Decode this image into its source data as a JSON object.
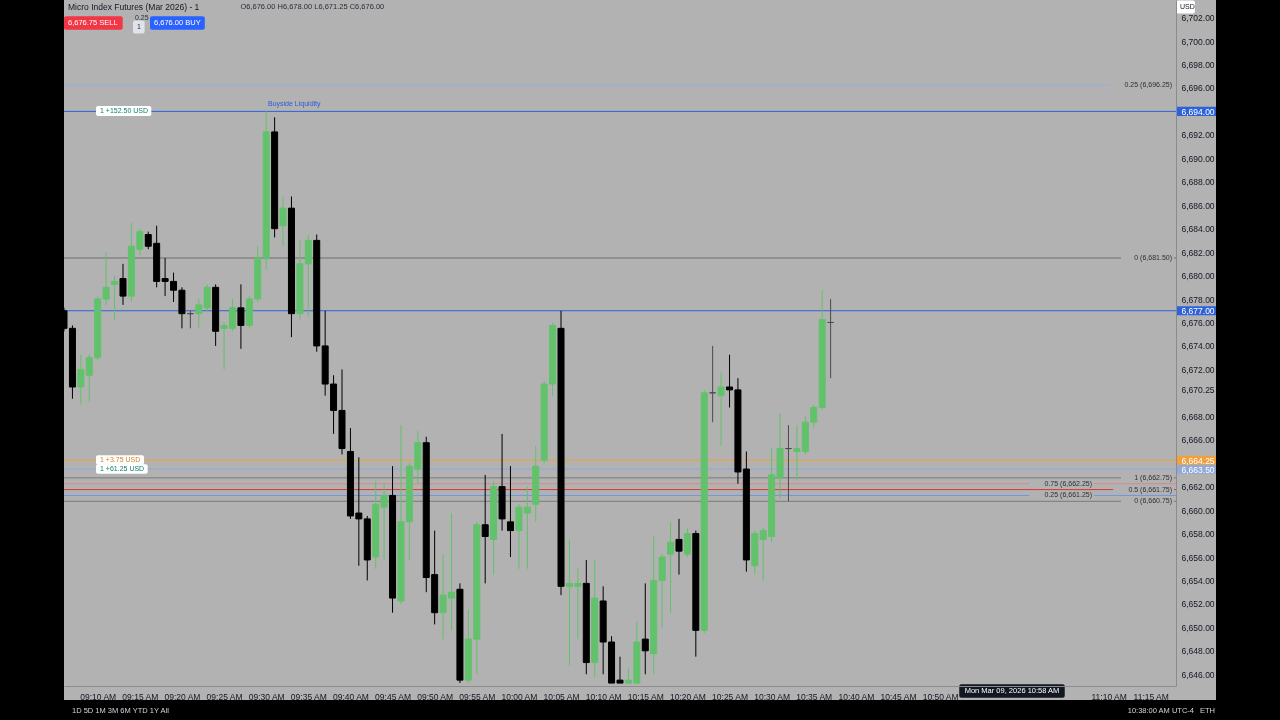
{
  "chart_data": {
    "type": "candlestick",
    "title": "Micro Index Futures (Mar 2026) - 1",
    "subtitle": "O6,676.00 H6,678.00 L6,671.25 C6,676.00",
    "x": [
      9.1,
      9.1167,
      9.1333,
      9.15,
      9.1667,
      9.1833,
      9.2,
      9.2167,
      9.2333,
      9.25,
      9.2667,
      9.2833,
      9.3,
      9.3167,
      9.3333,
      9.35,
      9.3667,
      9.3833,
      9.4,
      9.4167,
      9.4333,
      9.45,
      9.4667,
      9.4833,
      9.5,
      9.5167,
      9.5333,
      9.55,
      9.5667,
      9.5833,
      9.6,
      9.6167,
      9.6333,
      9.65,
      9.6667,
      9.6833,
      9.7,
      9.7167,
      9.7333,
      9.75,
      9.7667,
      9.7833,
      9.8,
      9.8167,
      9.8333,
      9.85,
      9.8667,
      9.8833,
      9.9,
      9.9167,
      9.9333,
      9.95,
      9.9667,
      9.9833,
      10,
      10.0167,
      10.0333,
      10.05,
      10.0667,
      10.0833,
      10.1,
      10.1167,
      10.1333,
      10.15,
      10.1667,
      10.1833,
      10.2,
      10.2167,
      10.2333,
      10.25,
      10.2667,
      10.2833,
      10.3,
      10.3167,
      10.3333,
      10.35,
      10.3667,
      10.3833,
      10.4,
      10.4167,
      10.4333,
      10.45,
      10.4667,
      10.4833,
      10.5,
      10.5167,
      10.5333,
      10.55,
      10.5667,
      10.5833,
      10.6,
      10.6167
    ],
    "ohlc": [
      [
        6677,
        6677.25,
        6675.25,
        6675.5
      ],
      [
        6675.5,
        6675.75,
        6669.5,
        6670.5
      ],
      [
        6670.5,
        6673.25,
        6669,
        6672
      ],
      [
        6671.5,
        6673.25,
        6669.25,
        6673
      ],
      [
        6673,
        6678.25,
        6672.75,
        6678
      ],
      [
        6678,
        6682,
        6677.5,
        6679
      ],
      [
        6679.25,
        6680,
        6676.25,
        6679.5
      ],
      [
        6679.75,
        6681,
        6677.5,
        6678.25
      ],
      [
        6678.25,
        6684.5,
        6677.75,
        6682.5
      ],
      [
        6682.25,
        6684,
        6681.75,
        6683.75
      ],
      [
        6683.5,
        6683.75,
        6682.25,
        6682.5
      ],
      [
        6682.75,
        6684.25,
        6679,
        6679.5
      ],
      [
        6679.75,
        6681.5,
        6678.25,
        6679.5
      ],
      [
        6679.5,
        6680.25,
        6677.75,
        6678.75
      ],
      [
        6678.75,
        6679,
        6675.5,
        6676.75
      ],
      [
        6676.75,
        6677,
        6675.5,
        6676.75
      ],
      [
        6676.75,
        6678,
        6675.5,
        6677.5
      ],
      [
        6677.25,
        6679.25,
        6677,
        6679
      ],
      [
        6679,
        6679.25,
        6674,
        6675.25
      ],
      [
        6675.5,
        6676,
        6672,
        6675.75
      ],
      [
        6675.5,
        6678,
        6675.25,
        6677.25
      ],
      [
        6677.25,
        6679.25,
        6673.75,
        6675.75
      ],
      [
        6675.75,
        6678.25,
        6675.5,
        6678
      ],
      [
        6678,
        6682.5,
        6677.75,
        6681.5
      ],
      [
        6681.5,
        6694,
        6680.5,
        6692.25
      ],
      [
        6692.25,
        6693.5,
        6683.25,
        6684
      ],
      [
        6684.25,
        6686.75,
        6682.5,
        6685.75
      ],
      [
        6685.75,
        6686.75,
        6674.75,
        6676.75
      ],
      [
        6676.75,
        6683,
        6676.25,
        6681
      ],
      [
        6681,
        6683.5,
        6676.5,
        6683
      ],
      [
        6683,
        6683.5,
        6673.5,
        6674
      ],
      [
        6674,
        6677,
        6669.75,
        6670.75
      ],
      [
        6670.75,
        6671.5,
        6666.5,
        6668.5
      ],
      [
        6668.5,
        6672,
        6664.75,
        6665.25
      ],
      [
        6665,
        6667,
        6659.25,
        6659.5
      ],
      [
        6659.75,
        6664.5,
        6655.25,
        6659.25
      ],
      [
        6659.25,
        6659.5,
        6654,
        6655.75
      ],
      [
        6656,
        6662.5,
        6655,
        6660.5
      ],
      [
        6660.25,
        6662.25,
        6655.75,
        6661.25
      ],
      [
        6661.25,
        6663.75,
        6651.25,
        6652.5
      ],
      [
        6652.25,
        6667.25,
        6652,
        6659
      ],
      [
        6659,
        6664,
        6655.75,
        6663.75
      ],
      [
        6663.5,
        6666.75,
        6662.25,
        6665.75
      ],
      [
        6665.75,
        6666.25,
        6653,
        6654.25
      ],
      [
        6654.5,
        6658.25,
        6650.25,
        6651.25
      ],
      [
        6651.25,
        6656.25,
        6649,
        6652.75
      ],
      [
        6652.5,
        6659.75,
        6649.75,
        6653
      ],
      [
        6653.25,
        6653.75,
        6645.25,
        6645.5
      ],
      [
        6645.5,
        6651.5,
        6645.25,
        6649
      ],
      [
        6649,
        6659,
        6646,
        6658.75
      ],
      [
        6658.75,
        6663,
        6653.75,
        6657.75
      ],
      [
        6657.5,
        6662.5,
        6654.5,
        6662
      ],
      [
        6662,
        6666.5,
        6658.25,
        6659.25
      ],
      [
        6659,
        6663.75,
        6656,
        6658.25
      ],
      [
        6658.25,
        6660.5,
        6655,
        6660.25
      ],
      [
        6659.75,
        6662,
        6655,
        6660.25
      ],
      [
        6660.5,
        6665.5,
        6659,
        6663.75
      ],
      [
        6664.25,
        6671,
        6664,
        6670.75
      ],
      [
        6670.75,
        6676,
        6669.75,
        6675.75
      ],
      [
        6675.5,
        6677,
        6652.75,
        6653.5
      ],
      [
        6653.5,
        6657.5,
        6646.75,
        6653.75
      ],
      [
        6653.5,
        6655,
        6649,
        6653.75
      ],
      [
        6653.75,
        6655.75,
        6646,
        6647
      ],
      [
        6647,
        6655.75,
        6645.75,
        6652.5
      ],
      [
        6652.25,
        6653.5,
        6646,
        6648.75
      ],
      [
        6648.75,
        6649.25,
        6645.25,
        6645.25
      ],
      [
        6645.5,
        6647.5,
        6645.25,
        6645.25
      ],
      [
        6645.25,
        6646.5,
        6645.25,
        6645.5
      ],
      [
        6645.25,
        6650.5,
        6645.25,
        6648.75
      ],
      [
        6649,
        6653.75,
        6646,
        6648
      ],
      [
        6647.75,
        6657.75,
        6646,
        6654
      ],
      [
        6654,
        6656.25,
        6650,
        6656
      ],
      [
        6656.25,
        6659,
        6651.25,
        6657.25
      ],
      [
        6657.5,
        6659.25,
        6654.5,
        6656.5
      ],
      [
        6656.25,
        6658.5,
        6656,
        6658
      ],
      [
        6658,
        6658.25,
        6647.5,
        6649.75
      ],
      [
        6649.75,
        6670.25,
        6649.5,
        6670
      ],
      [
        6670,
        6674,
        6667.5,
        6670
      ],
      [
        6669.75,
        6671.75,
        6665.5,
        6670.5
      ],
      [
        6670.5,
        6673.25,
        6668.75,
        6670.25
      ],
      [
        6670.25,
        6671.25,
        6662.25,
        6663.25
      ],
      [
        6663.5,
        6665,
        6654.75,
        6655.75
      ],
      [
        6655.25,
        6658.25,
        6654.5,
        6658
      ],
      [
        6657.5,
        6658.5,
        6654,
        6658.25
      ],
      [
        6657.75,
        6665.25,
        6657.25,
        6663
      ],
      [
        6662.75,
        6668.25,
        6661,
        6665.25
      ],
      [
        6665.25,
        6667.25,
        6660.75,
        6665.25
      ],
      [
        6665,
        6667.25,
        6662.5,
        6665.25
      ],
      [
        6665,
        6668,
        6664.75,
        6667.5
      ],
      [
        6667.5,
        6669,
        6667,
        6668.75
      ],
      [
        6668.75,
        6678.75,
        6668.5,
        6676.25
      ],
      [
        6676,
        6678,
        6671.25,
        6676
      ]
    ],
    "colors": [
      "#000000",
      "#000000",
      "#62c26b",
      "#62c26b",
      "#62c26b",
      "#62c26b",
      "#62c26b",
      "#000000",
      "#62c26b",
      "#62c26b",
      "#000000",
      "#000000",
      "#000000",
      "#000000",
      "#000000",
      "#4a4a4a",
      "#62c26b",
      "#62c26b",
      "#000000",
      "#62c26b",
      "#62c26b",
      "#000000",
      "#62c26b",
      "#62c26b",
      "#62c26b",
      "#000000",
      "#62c26b",
      "#000000",
      "#62c26b",
      "#62c26b",
      "#000000",
      "#000000",
      "#000000",
      "#000000",
      "#000000",
      "#000000",
      "#000000",
      "#62c26b",
      "#62c26b",
      "#000000",
      "#62c26b",
      "#62c26b",
      "#62c26b",
      "#000000",
      "#000000",
      "#62c26b",
      "#62c26b",
      "#000000",
      "#62c26b",
      "#62c26b",
      "#000000",
      "#62c26b",
      "#000000",
      "#000000",
      "#62c26b",
      "#62c26b",
      "#62c26b",
      "#62c26b",
      "#62c26b",
      "#000000",
      "#62c26b",
      "#62c26b",
      "#000000",
      "#62c26b",
      "#000000",
      "#000000",
      "#000000",
      "#62c26b",
      "#62c26b",
      "#000000",
      "#62c26b",
      "#62c26b",
      "#62c26b",
      "#000000",
      "#62c26b",
      "#000000",
      "#62c26b",
      "#4a4a4a",
      "#62c26b",
      "#000000",
      "#000000",
      "#000000",
      "#62c26b",
      "#62c26b",
      "#62c26b",
      "#62c26b",
      "#4a4a4a",
      "#62c26b",
      "#62c26b",
      "#62c26b",
      "#62c26b",
      "#4a4a4a"
    ],
    "xlim": [
      9.1,
      11.3
    ],
    "xticks": [
      {
        "value": 9.1667,
        "label": "09:10 AM"
      },
      {
        "value": 9.25,
        "label": "09:15 AM"
      },
      {
        "value": 9.3333,
        "label": "09:20 AM"
      },
      {
        "value": 9.4167,
        "label": "09:25 AM"
      },
      {
        "value": 9.5,
        "label": "09:30 AM"
      },
      {
        "value": 9.5833,
        "label": "09:35 AM"
      },
      {
        "value": 9.6667,
        "label": "09:40 AM"
      },
      {
        "value": 9.75,
        "label": "09:45 AM"
      },
      {
        "value": 9.8333,
        "label": "09:50 AM"
      },
      {
        "value": 9.9167,
        "label": "09:55 AM"
      },
      {
        "value": 10,
        "label": "10:00 AM"
      },
      {
        "value": 10.0833,
        "label": "10:05 AM"
      },
      {
        "value": 10.1667,
        "label": "10:10 AM"
      },
      {
        "value": 10.25,
        "label": "10:15 AM"
      },
      {
        "value": 10.3333,
        "label": "10:20 AM"
      },
      {
        "value": 10.4167,
        "label": "10:25 AM"
      },
      {
        "value": 10.5,
        "label": "10:30 AM"
      },
      {
        "value": 10.5833,
        "label": "10:35 AM"
      },
      {
        "value": 10.6667,
        "label": "10:40 AM"
      },
      {
        "value": 10.75,
        "label": "10:45 AM"
      },
      {
        "value": 10.8333,
        "label": "10:50 AM"
      },
      {
        "value": 11.1667,
        "label": "11:10 AM"
      },
      {
        "value": 11.25,
        "label": "11:15 AM"
      }
    ],
    "ylim": [
      6645,
      6703.5
    ],
    "yticks": [
      {
        "value": 6646,
        "label": "6,646.00"
      },
      {
        "value": 6648,
        "label": "6,648.00"
      },
      {
        "value": 6650,
        "label": "6,650.00"
      },
      {
        "value": 6652,
        "label": "6,652.00"
      },
      {
        "value": 6654,
        "label": "6,654.00"
      },
      {
        "value": 6656,
        "label": "6,656.00"
      },
      {
        "value": 6658,
        "label": "6,658.00"
      },
      {
        "value": 6660,
        "label": "6,660.00"
      },
      {
        "value": 6662,
        "label": "6,662.00"
      },
      {
        "value": 6663.5,
        "label": "6,663.50"
      },
      {
        "value": 6664.25,
        "label": "6,664.25"
      },
      {
        "value": 6666,
        "label": "6,666.00"
      },
      {
        "value": 6668,
        "label": "6,668.00"
      },
      {
        "value": 6670.25,
        "label": "6,670.25"
      },
      {
        "value": 6672,
        "label": "6,672.00"
      },
      {
        "value": 6674,
        "label": "6,674.00"
      },
      {
        "value": 6676,
        "label": "6,676.00"
      },
      {
        "value": 6677,
        "label": "6,677.00"
      },
      {
        "value": 6678,
        "label": "6,678.00"
      },
      {
        "value": 6680,
        "label": "6,680.00"
      },
      {
        "value": 6682,
        "label": "6,682.00"
      },
      {
        "value": 6684,
        "label": "6,684.00"
      },
      {
        "value": 6686,
        "label": "6,686.00"
      },
      {
        "value": 6688,
        "label": "6,688.00"
      },
      {
        "value": 6690,
        "label": "6,690.00"
      },
      {
        "value": 6692,
        "label": "6,692.00"
      },
      {
        "value": 6694,
        "label": "6,694.00"
      },
      {
        "value": 6696,
        "label": "6,696.00"
      },
      {
        "value": 6698,
        "label": "6,698.00"
      },
      {
        "value": 6700,
        "label": "6,700.00"
      },
      {
        "value": 6702,
        "label": "6,702.00"
      }
    ],
    "ref_lines": [
      {
        "axis": "y",
        "value": 6696.25,
        "label": "0.25 (6,696.25)",
        "color": "#93aee0"
      },
      {
        "axis": "y",
        "value": 6694,
        "color": "#2d62d8"
      },
      {
        "axis": "y",
        "value": 6681.5,
        "label": "0 (6,681.50)",
        "color": "#6f6f6f"
      },
      {
        "axis": "y",
        "value": 6677,
        "color": "#2d62d8"
      },
      {
        "axis": "y",
        "value": 6664.25,
        "color": "#f0a03c"
      },
      {
        "axis": "y",
        "value": 6663.5,
        "color": "#8fa9d8"
      },
      {
        "axis": "y",
        "value": 6662.75,
        "label": "1 (6,662.75)",
        "color": "#7a7a7a"
      },
      {
        "axis": "y",
        "value": 6662.25,
        "label": "0.75 (6,662.25)",
        "color": "#d98a8a"
      },
      {
        "axis": "y",
        "value": 6661.75,
        "label": "0.5 (6,661.75)",
        "color": "#e0352f"
      },
      {
        "axis": "y",
        "value": 6661.25,
        "label": "0.25 (6,661.25)",
        "color": "#6f96e0"
      },
      {
        "axis": "y",
        "value": 6660.75,
        "label": "0 (6,660.75)",
        "color": "#7a7a7a"
      }
    ],
    "annotations": [
      "Buyside Liquidity",
      "1 +152.50 USD",
      "1 +3.75 USD",
      "1 +61.25 USD",
      "Mon Mar 09, 2026 10:58 AM",
      "6,676.75 SELL",
      "0.25",
      "1",
      "6,676.00 BUY",
      "USD",
      "1D 5D 1M 3M 6M YTD 1Y All",
      "10:38:00 AM UTC-4",
      "ETH"
    ]
  }
}
